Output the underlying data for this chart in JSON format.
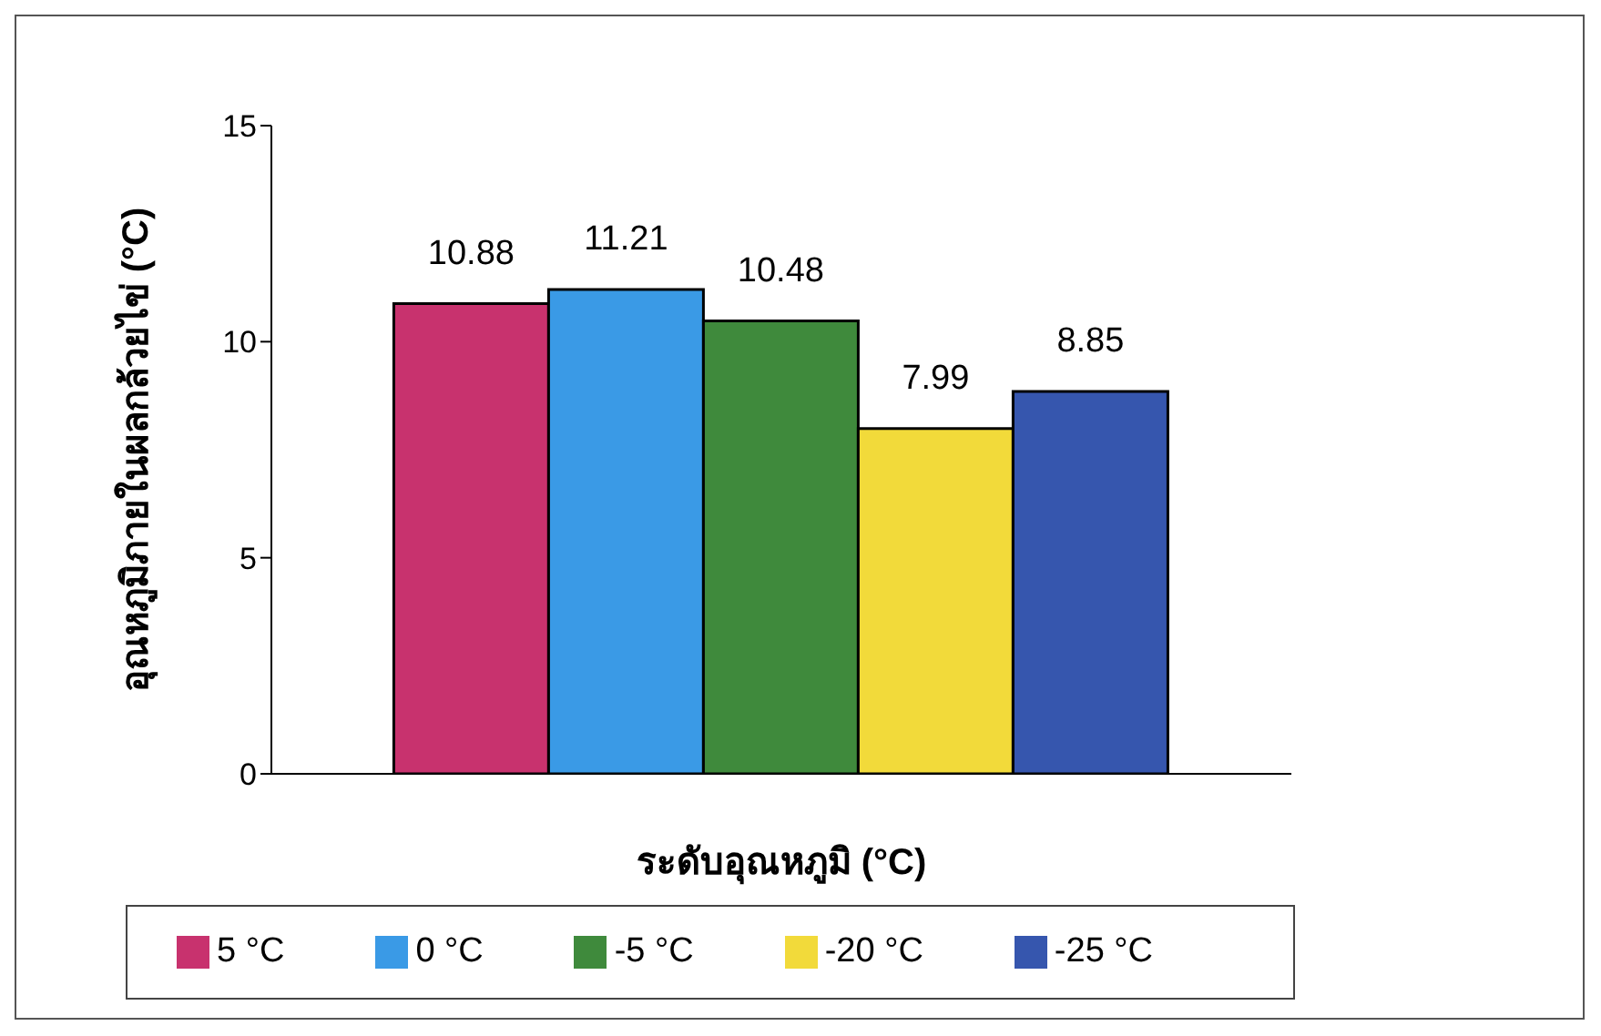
{
  "chart_data": {
    "type": "bar",
    "xlabel": "ระดับอุณหภูมิ (°C)",
    "ylabel": "อุณหภูมิภายในผลกล้วยไข่ (°C)",
    "categories": [
      null
    ],
    "series": [
      {
        "name": "5 °C",
        "color": "#c8326e",
        "values": [
          10.88
        ]
      },
      {
        "name": "0 °C",
        "color": "#3a9ae6",
        "values": [
          11.21
        ]
      },
      {
        "name": "-5 °C",
        "color": "#3f8a3c",
        "values": [
          10.48
        ]
      },
      {
        "name": "-20 °C",
        "color": "#f2da3a",
        "values": [
          7.99
        ]
      },
      {
        "name": "-25 °C",
        "color": "#3656ae",
        "values": [
          8.85
        ]
      }
    ],
    "ylim": [
      0,
      15
    ],
    "yticks": [
      0,
      5,
      10,
      15
    ],
    "data_labels": true,
    "legend": "bottom"
  }
}
